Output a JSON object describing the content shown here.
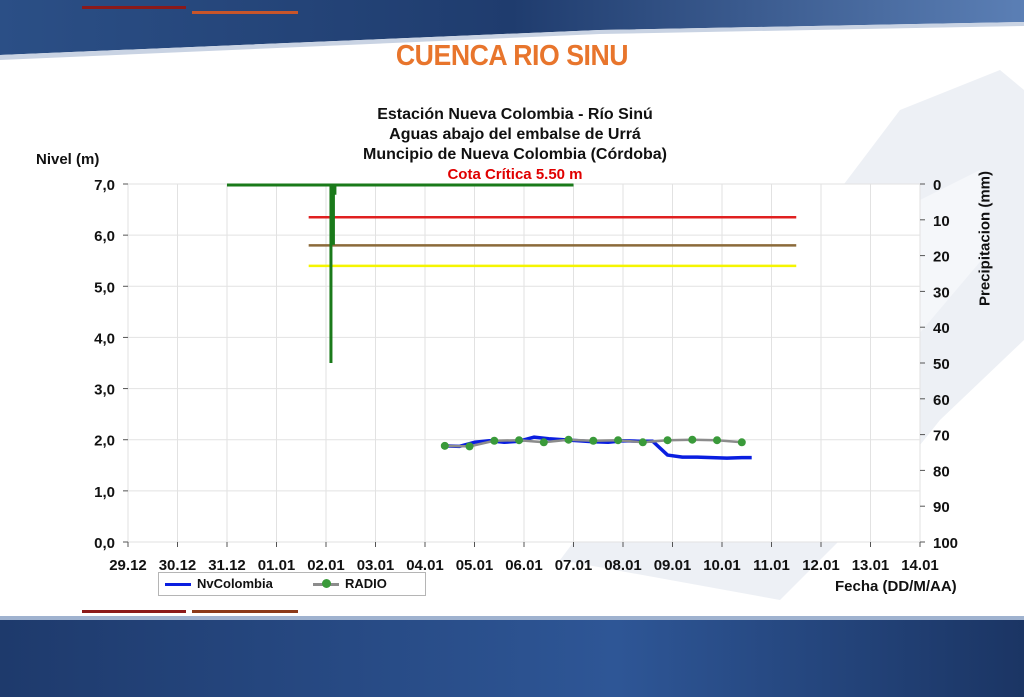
{
  "slide": {
    "title": "CUENCA RIO SINU",
    "colors": {
      "title": "#e8752c",
      "band_dark": "#1f3c6e",
      "band_mid": "#3a5f9a",
      "accent_red": "#8b1a1a",
      "accent_orange": "#c8552a"
    }
  },
  "chart_data": {
    "type": "line",
    "title_lines": [
      "Estación Nueva Colombia  - Río Sinú",
      "Aguas abajo del embalse de Urrá",
      "Muncipio de Nueva Colombia  (Córdoba)"
    ],
    "subtitle": "Cota Crítica 5.50 m",
    "subtitle_color": "#e00000",
    "ylabel": "Nivel (m)",
    "y2label": "Precipitacion (mm)",
    "xlabel": "Fecha (DD/M/AA)",
    "ylim": [
      0,
      7
    ],
    "y2lim": [
      100,
      0
    ],
    "y_ticks": [
      "0,0",
      "1,0",
      "2,0",
      "3,0",
      "4,0",
      "5,0",
      "6,0",
      "7,0"
    ],
    "y2_ticks": [
      "0",
      "10",
      "20",
      "30",
      "40",
      "50",
      "60",
      "70",
      "80",
      "90",
      "100"
    ],
    "x_ticks": [
      "29.12",
      "30.12",
      "31.12",
      "01.01",
      "02.01",
      "03.01",
      "04.01",
      "05.01",
      "06.01",
      "07.01",
      "08.01",
      "09.01",
      "10.01",
      "11.01",
      "12.01",
      "13.01",
      "14.01"
    ],
    "grid": true,
    "legend_position": "bottom-left",
    "thresholds": [
      {
        "value": 6.35,
        "color": "#e02020",
        "x_start": 4.65,
        "x_end": 14.5
      },
      {
        "value": 5.8,
        "color": "#8b6a3a",
        "x_start": 4.65,
        "x_end": 14.5
      },
      {
        "value": 5.4,
        "color": "#f5f500",
        "x_start": 4.65,
        "x_end": 14.5
      }
    ],
    "precipitation": {
      "color": "#1a7a1a",
      "x_start": 2.0,
      "x_end": 9.0,
      "baseline": 0,
      "spikes": [
        {
          "x": 4.1,
          "value": 50
        },
        {
          "x": 4.15,
          "value": 17
        },
        {
          "x": 4.18,
          "value": 3
        }
      ]
    },
    "series": [
      {
        "name": "NvColombia",
        "color": "#0a1ee0",
        "x": [
          7.4,
          7.7,
          8.0,
          8.3,
          8.6,
          8.9,
          9.2,
          9.5,
          9.8,
          10.1,
          10.4,
          10.7,
          11.0,
          11.3,
          11.6,
          11.9,
          12.2,
          12.5,
          12.8,
          13.1,
          13.4,
          13.6
        ],
        "values": [
          1.88,
          1.87,
          1.95,
          1.98,
          1.95,
          1.97,
          2.05,
          2.02,
          2.0,
          1.98,
          1.96,
          1.95,
          1.98,
          1.97,
          1.97,
          1.7,
          1.66,
          1.66,
          1.65,
          1.64,
          1.65,
          1.65
        ]
      },
      {
        "name": "RADIO",
        "color": "#8c8c8c",
        "marker_color": "#3a9a3a",
        "x": [
          7.4,
          7.9,
          8.4,
          8.9,
          9.4,
          9.9,
          10.4,
          10.9,
          11.4,
          11.9,
          12.4,
          12.9,
          13.4
        ],
        "values": [
          1.88,
          1.87,
          1.98,
          1.99,
          1.95,
          2.0,
          1.98,
          1.99,
          1.95,
          1.99,
          2.0,
          1.99,
          1.95
        ]
      }
    ]
  }
}
